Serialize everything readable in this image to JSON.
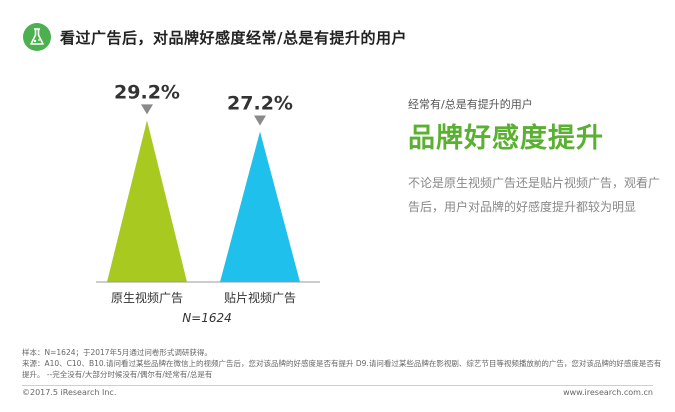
{
  "header": {
    "title": "看过广告后，对品牌好感度经常/总是有提升的用户"
  },
  "chart_data": {
    "type": "bar",
    "categories": [
      "原生视频广告",
      "贴片视频广告"
    ],
    "values": [
      29.2,
      27.2
    ],
    "value_labels": [
      "29.2%",
      "27.2%"
    ],
    "colors": [
      "#a8c920",
      "#20c0ec"
    ],
    "ylim": [
      0,
      30
    ],
    "annotation": "N=1624"
  },
  "side": {
    "sub": "经常有/总是有提升的用户",
    "headline": "品牌好感度提升",
    "body": "不论是原生视频广告还是贴片视频广告，观看广告后，用户对品牌的好感度提升都较为明显"
  },
  "notes": {
    "sample": "样本：N=1624；于2017年5月通过问卷形式调研获得。",
    "source": "来源：A10、C10、B10.请问看过某些品牌在微信上的视频广告后，您对该品牌的好感度是否有提升  D9.请问看过某些品牌在影视剧、综艺节目等视频播放前的广告，您对该品牌的好感度是否有提升。 --完全没有/大部分时候没有/偶尔有/经常有/总是有"
  },
  "footer": {
    "copyright": "©2017.5 iResearch Inc.",
    "site": "www.iresearch.com.cn"
  },
  "theme": {
    "accent": "#5ab031",
    "logo": "#4caf50"
  }
}
